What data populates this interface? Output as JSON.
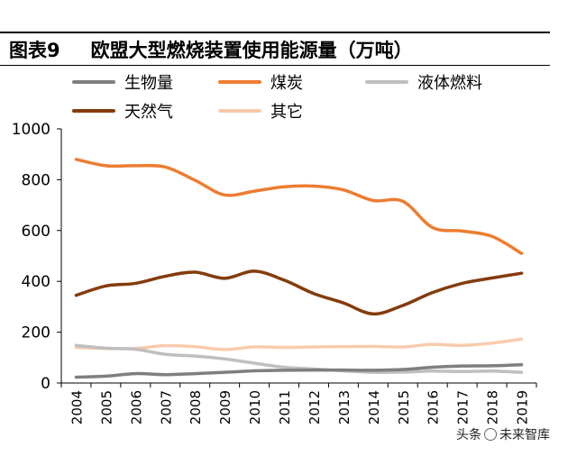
{
  "header": {
    "figure_no": "图表9",
    "title": "欧盟大型燃烧装置使用能源量（万吨）"
  },
  "footer": {
    "wm_left": "头条",
    "wm_right": "未来智库"
  },
  "chart_data": {
    "type": "line",
    "title": "欧盟大型燃烧装置使用能源量（万吨）",
    "xlabel": "",
    "ylabel": "",
    "ylim": [
      0,
      1000
    ],
    "yticks": [
      0,
      200,
      400,
      600,
      800,
      1000
    ],
    "x": [
      "2004",
      "2005",
      "2006",
      "2007",
      "2008",
      "2009",
      "2010",
      "2011",
      "2012",
      "2013",
      "2014",
      "2015",
      "2016",
      "2017",
      "2018",
      "2019"
    ],
    "series": [
      {
        "name": "生物量",
        "color": "#7f7f7f",
        "values": [
          23,
          27,
          37,
          33,
          37,
          42,
          48,
          50,
          51,
          51,
          50,
          53,
          62,
          67,
          68,
          72
        ]
      },
      {
        "name": "煤炭",
        "color": "#ed7d31",
        "values": [
          880,
          855,
          855,
          850,
          798,
          740,
          755,
          772,
          775,
          760,
          718,
          715,
          612,
          598,
          577,
          510
        ]
      },
      {
        "name": "液体燃料",
        "color": "#bfbfbf",
        "values": [
          148,
          137,
          133,
          113,
          106,
          95,
          78,
          62,
          55,
          48,
          42,
          43,
          47,
          45,
          47,
          42
        ]
      },
      {
        "name": "天然气",
        "color": "#843c0c",
        "values": [
          345,
          382,
          392,
          420,
          436,
          412,
          440,
          405,
          352,
          315,
          272,
          305,
          356,
          392,
          413,
          432
        ]
      },
      {
        "name": "其它",
        "color": "#f8cbad",
        "values": [
          140,
          136,
          136,
          147,
          143,
          132,
          142,
          140,
          142,
          143,
          144,
          142,
          152,
          148,
          157,
          173
        ]
      }
    ]
  }
}
